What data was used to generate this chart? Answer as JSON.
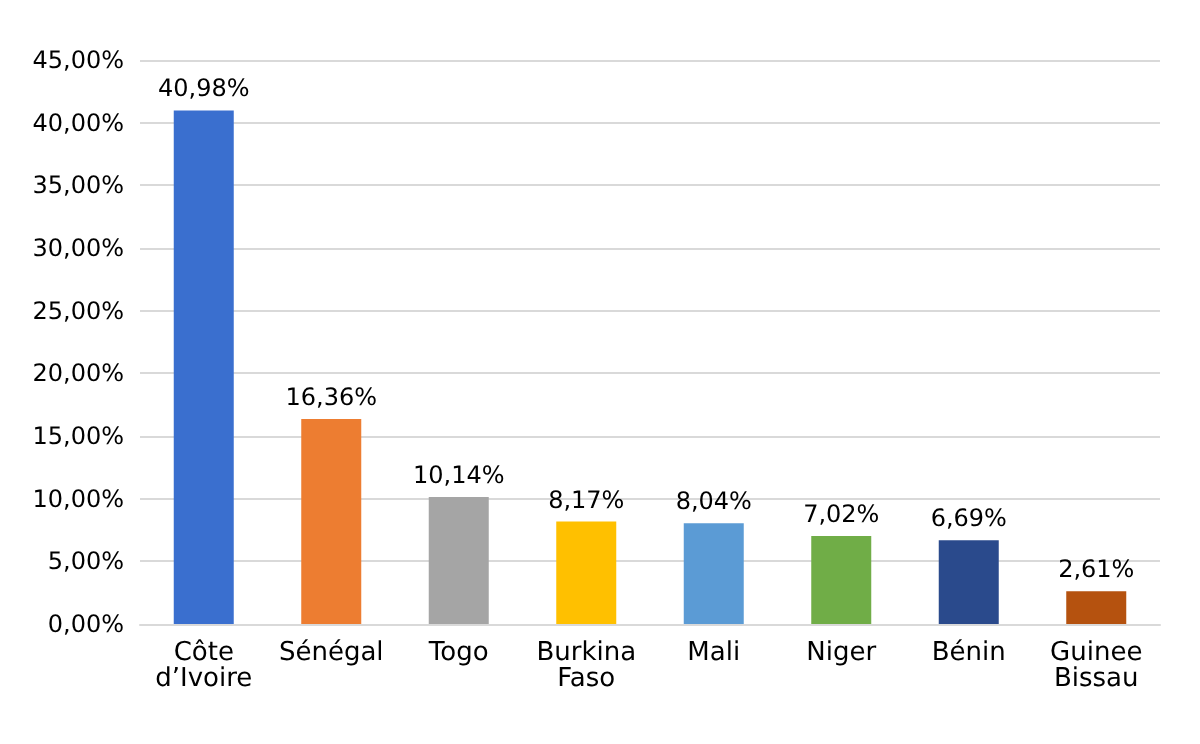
{
  "chart_data": {
    "type": "bar",
    "categories": [
      "Côte\nd’Ivoire",
      "Sénégal",
      "Togo",
      "Burkina\nFaso",
      "Mali",
      "Niger",
      "Bénin",
      "Guinee\nBissau"
    ],
    "values": [
      40.98,
      16.36,
      10.14,
      8.17,
      8.04,
      7.02,
      6.69,
      2.61
    ],
    "value_labels": [
      "40,98%",
      "16,36%",
      "10,14%",
      "8,17%",
      "8,04%",
      "7,02%",
      "6,69%",
      "2,61%"
    ],
    "colors": [
      "#3a6fcf",
      "#ed7d31",
      "#a5a5a5",
      "#ffc000",
      "#5b9bd5",
      "#70ad47",
      "#2a4a8c",
      "#b5520f"
    ],
    "ylim": [
      0,
      45
    ],
    "yticks": [
      {
        "value": 0,
        "label": "0,00%"
      },
      {
        "value": 5,
        "label": "5,00%"
      },
      {
        "value": 10,
        "label": "10,00%"
      },
      {
        "value": 15,
        "label": "15,00%"
      },
      {
        "value": 20,
        "label": "20,00%"
      },
      {
        "value": 25,
        "label": "25,00%"
      },
      {
        "value": 30,
        "label": "30,00%"
      },
      {
        "value": 35,
        "label": "35,00%"
      },
      {
        "value": 40,
        "label": "40,00%"
      },
      {
        "value": 45,
        "label": "45,00%"
      }
    ],
    "grid": true
  }
}
